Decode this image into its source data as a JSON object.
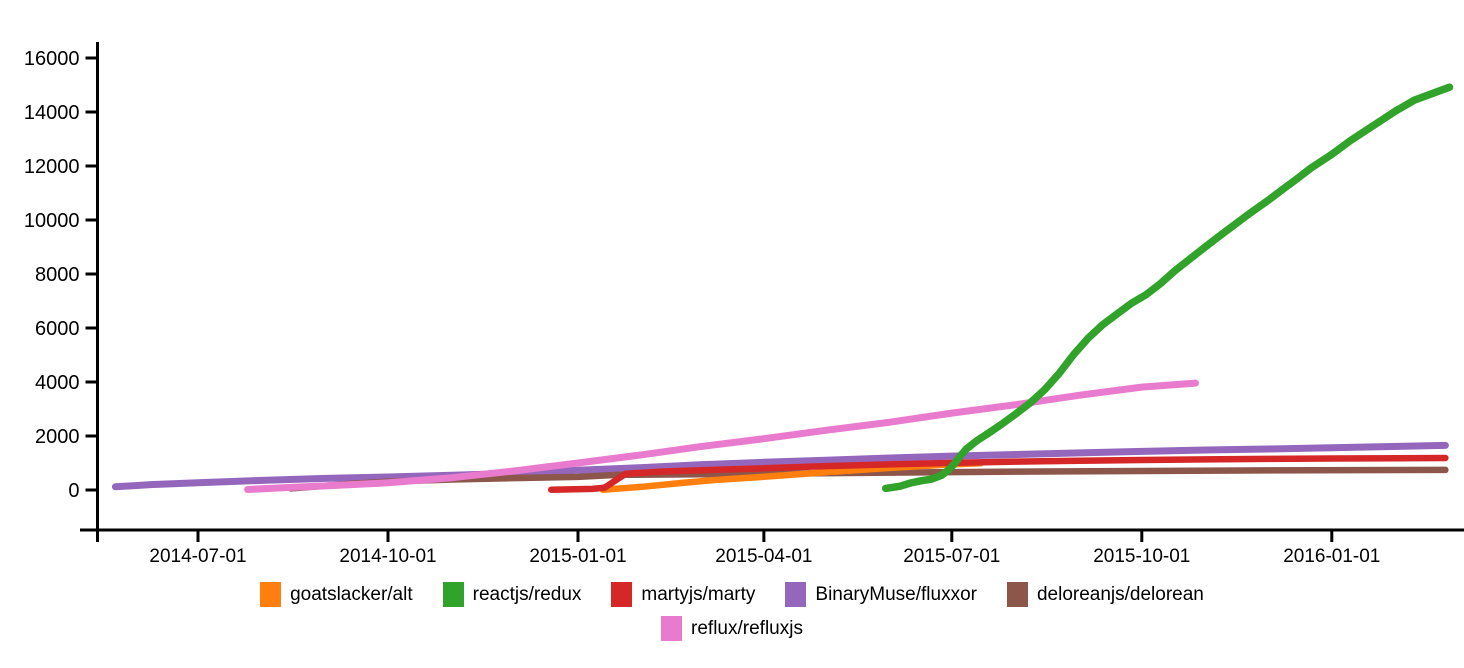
{
  "page": {
    "background": "#ffffff"
  },
  "chart_data": {
    "type": "line",
    "title": "",
    "xlabel": "",
    "ylabel": "",
    "grid": false,
    "legend_position": "bottom-center",
    "y_axis": {
      "range": [
        0,
        16000
      ],
      "ticks": [
        0,
        2000,
        4000,
        6000,
        8000,
        10000,
        12000,
        14000,
        16000
      ]
    },
    "x_axis": {
      "tick_labels": [
        "2014-07-01",
        "2014-10-01",
        "2015-01-01",
        "2015-04-01",
        "2015-07-01",
        "2015-10-01",
        "2016-01-01"
      ]
    },
    "legend_rows": [
      [
        "goatslacker/alt",
        "reactjs/redux",
        "martyjs/marty",
        "BinaryMuse/fluxxor",
        "deloreanjs/delorean"
      ],
      [
        "reflux/refluxjs"
      ]
    ],
    "colors": {
      "goatslacker/alt": "#ff7f0e",
      "reactjs/redux": "#31a32a",
      "martyjs/marty": "#d62728",
      "BinaryMuse/fluxxor": "#9467bd",
      "deloreanjs/delorean": "#8c564b",
      "reflux/refluxjs": "#e87bce"
    },
    "series": [
      {
        "name": "BinaryMuse/fluxxor",
        "color": "#9467bd",
        "width": 7,
        "points": [
          [
            "2014-05-22",
            120
          ],
          [
            "2014-06-08",
            200
          ],
          [
            "2014-07-01",
            270
          ],
          [
            "2014-08-01",
            355
          ],
          [
            "2014-09-01",
            430
          ],
          [
            "2014-10-01",
            480
          ],
          [
            "2014-11-01",
            545
          ],
          [
            "2014-12-01",
            615
          ],
          [
            "2015-01-01",
            730
          ],
          [
            "2015-02-01",
            830
          ],
          [
            "2015-03-01",
            935
          ],
          [
            "2015-04-01",
            1025
          ],
          [
            "2015-05-01",
            1105
          ],
          [
            "2015-06-01",
            1185
          ],
          [
            "2015-07-01",
            1255
          ],
          [
            "2015-08-01",
            1315
          ],
          [
            "2015-09-01",
            1375
          ],
          [
            "2015-10-01",
            1430
          ],
          [
            "2015-11-01",
            1480
          ],
          [
            "2015-12-01",
            1520
          ],
          [
            "2016-01-01",
            1565
          ],
          [
            "2016-02-25",
            1650
          ]
        ]
      },
      {
        "name": "deloreanjs/delorean",
        "color": "#8c564b",
        "width": 6.5,
        "points": [
          [
            "2014-08-15",
            60
          ],
          [
            "2014-09-01",
            160
          ],
          [
            "2014-09-15",
            240
          ],
          [
            "2014-10-01",
            310
          ],
          [
            "2014-11-01",
            390
          ],
          [
            "2014-12-01",
            440
          ],
          [
            "2015-01-01",
            485
          ],
          [
            "2015-01-20",
            560
          ],
          [
            "2015-03-01",
            580
          ],
          [
            "2015-04-01",
            600
          ],
          [
            "2015-06-01",
            645
          ],
          [
            "2015-08-01",
            680
          ],
          [
            "2015-10-01",
            705
          ],
          [
            "2015-12-01",
            725
          ],
          [
            "2016-02-25",
            745
          ]
        ]
      },
      {
        "name": "goatslacker/alt",
        "color": "#ff7f0e",
        "width": 6.5,
        "points": [
          [
            "2015-01-13",
            10
          ],
          [
            "2015-02-01",
            120
          ],
          [
            "2015-02-20",
            260
          ],
          [
            "2015-03-10",
            380
          ],
          [
            "2015-04-01",
            490
          ],
          [
            "2015-05-01",
            660
          ],
          [
            "2015-06-01",
            820
          ],
          [
            "2015-07-01",
            950
          ],
          [
            "2015-07-15",
            990
          ]
        ]
      },
      {
        "name": "martyjs/marty",
        "color": "#d62728",
        "width": 6.5,
        "points": [
          [
            "2014-12-19",
            10
          ],
          [
            "2015-01-08",
            40
          ],
          [
            "2015-01-14",
            90
          ],
          [
            "2015-01-24",
            600
          ],
          [
            "2015-02-10",
            680
          ],
          [
            "2015-03-01",
            730
          ],
          [
            "2015-04-01",
            805
          ],
          [
            "2015-05-01",
            885
          ],
          [
            "2015-06-01",
            950
          ],
          [
            "2015-07-01",
            1005
          ],
          [
            "2015-08-01",
            1050
          ],
          [
            "2015-09-01",
            1085
          ],
          [
            "2015-10-01",
            1110
          ],
          [
            "2015-11-01",
            1135
          ],
          [
            "2015-12-01",
            1150
          ],
          [
            "2016-01-01",
            1165
          ],
          [
            "2016-02-25",
            1185
          ]
        ]
      },
      {
        "name": "reflux/refluxjs",
        "color": "#e87bce",
        "width": 7,
        "points": [
          [
            "2014-07-25",
            20
          ],
          [
            "2014-08-15",
            95
          ],
          [
            "2014-09-01",
            150
          ],
          [
            "2014-10-01",
            265
          ],
          [
            "2014-11-01",
            455
          ],
          [
            "2014-12-01",
            705
          ],
          [
            "2015-01-01",
            1000
          ],
          [
            "2015-02-01",
            1305
          ],
          [
            "2015-03-01",
            1605
          ],
          [
            "2015-04-01",
            1900
          ],
          [
            "2015-05-01",
            2210
          ],
          [
            "2015-06-01",
            2510
          ],
          [
            "2015-07-01",
            2850
          ],
          [
            "2015-08-01",
            3160
          ],
          [
            "2015-09-01",
            3510
          ],
          [
            "2015-10-01",
            3810
          ],
          [
            "2015-10-27",
            3960
          ]
        ]
      },
      {
        "name": "reactjs/redux",
        "color": "#31a32a",
        "width": 7.5,
        "points": [
          [
            "2015-05-30",
            60
          ],
          [
            "2015-06-06",
            140
          ],
          [
            "2015-06-11",
            260
          ],
          [
            "2015-06-16",
            340
          ],
          [
            "2015-06-21",
            400
          ],
          [
            "2015-06-26",
            540
          ],
          [
            "2015-06-29",
            720
          ],
          [
            "2015-07-02",
            950
          ],
          [
            "2015-07-05",
            1250
          ],
          [
            "2015-07-08",
            1520
          ],
          [
            "2015-07-13",
            1820
          ],
          [
            "2015-07-19",
            2120
          ],
          [
            "2015-07-25",
            2430
          ],
          [
            "2015-08-01",
            2820
          ],
          [
            "2015-08-08",
            3230
          ],
          [
            "2015-08-15",
            3720
          ],
          [
            "2015-08-22",
            4320
          ],
          [
            "2015-08-29",
            5020
          ],
          [
            "2015-09-05",
            5620
          ],
          [
            "2015-09-12",
            6120
          ],
          [
            "2015-09-19",
            6520
          ],
          [
            "2015-09-26",
            6920
          ],
          [
            "2015-10-03",
            7230
          ],
          [
            "2015-10-10",
            7640
          ],
          [
            "2015-10-17",
            8120
          ],
          [
            "2015-10-24",
            8540
          ],
          [
            "2015-11-01",
            9020
          ],
          [
            "2015-11-08",
            9430
          ],
          [
            "2015-11-15",
            9830
          ],
          [
            "2015-11-22",
            10230
          ],
          [
            "2015-12-01",
            10720
          ],
          [
            "2015-12-08",
            11120
          ],
          [
            "2015-12-15",
            11520
          ],
          [
            "2015-12-22",
            11930
          ],
          [
            "2016-01-01",
            12430
          ],
          [
            "2016-01-10",
            12940
          ],
          [
            "2016-01-20",
            13440
          ],
          [
            "2016-02-01",
            14040
          ],
          [
            "2016-02-10",
            14440
          ],
          [
            "2016-02-27",
            14920
          ]
        ]
      }
    ]
  }
}
